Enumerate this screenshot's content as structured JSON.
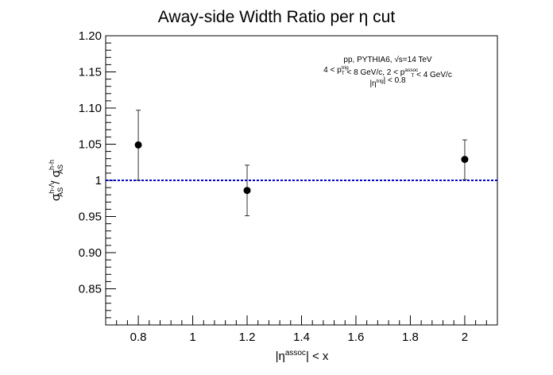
{
  "chart_data": {
    "type": "scatter",
    "title": "Away-side Width Ratio per η cut",
    "xlabel": {
      "base": "|η",
      "sup": "assoc",
      "tail": "| < x"
    },
    "ylabel": {
      "p1": "σ",
      "p1_sup": "h-Λ",
      "p1_sub": "AS",
      "sep": " / ",
      "p2": "σ",
      "p2_sup": "h-h",
      "p2_sub": "AS"
    },
    "xlim": [
      0.68,
      2.12
    ],
    "ylim": [
      0.8,
      1.2
    ],
    "x_ticks": [
      {
        "value": 0.8,
        "label": "0.8"
      },
      {
        "value": 1.0,
        "label": "1"
      },
      {
        "value": 1.2,
        "label": "1.2"
      },
      {
        "value": 1.4,
        "label": "1.4"
      },
      {
        "value": 1.6,
        "label": "1.6"
      },
      {
        "value": 1.8,
        "label": "1.8"
      },
      {
        "value": 2.0,
        "label": "2"
      }
    ],
    "y_ticks": [
      {
        "value": 0.85,
        "label": "0.85"
      },
      {
        "value": 0.9,
        "label": "0.90"
      },
      {
        "value": 0.95,
        "label": "0.95"
      },
      {
        "value": 1.0,
        "label": "1"
      },
      {
        "value": 1.05,
        "label": "1.05"
      },
      {
        "value": 1.1,
        "label": "1.10"
      },
      {
        "value": 1.15,
        "label": "1.15"
      },
      {
        "value": 1.2,
        "label": "1.20"
      }
    ],
    "points": [
      {
        "x": 0.8,
        "y": 1.049,
        "err_low": 1.0,
        "err_high": 1.097
      },
      {
        "x": 1.2,
        "y": 0.986,
        "err_low": 0.951,
        "err_high": 1.021
      },
      {
        "x": 2.0,
        "y": 1.029,
        "err_low": 1.001,
        "err_high": 1.056
      }
    ],
    "reference_line": {
      "y": 1.0,
      "color": "#0000cc",
      "style": "dashed"
    },
    "marker_color": "#000000",
    "grid": false,
    "annotation": [
      [
        {
          "t": "pp, PYTHIA6, "
        },
        {
          "t": "√s=14 TeV"
        }
      ],
      [
        {
          "t": "4 < p"
        },
        {
          "t": "trig",
          "sup": true
        },
        {
          "t": "T",
          "sub": true
        },
        {
          "t": " < 8 GeV/c, 2 < p"
        },
        {
          "t": "assoc",
          "sup": true
        },
        {
          "t": "T",
          "sub": true
        },
        {
          "t": " < 4 GeV/c"
        }
      ],
      [
        {
          "t": "|η"
        },
        {
          "t": "trig",
          "sup": true
        },
        {
          "t": "| < 0.8"
        }
      ]
    ]
  }
}
